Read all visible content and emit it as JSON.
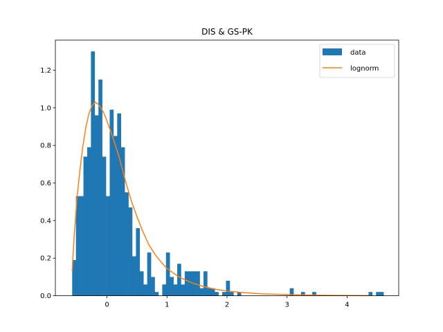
{
  "chart_data": {
    "type": "bar",
    "title": "DIS & GS-PK",
    "xlabel": "",
    "ylabel": "",
    "xlim": [
      -0.86,
      4.86
    ],
    "ylim": [
      0,
      1.36
    ],
    "xticks": [
      0,
      1,
      2,
      3,
      4
    ],
    "yticks": [
      0.0,
      0.2,
      0.4,
      0.6,
      0.8,
      1.0,
      1.2
    ],
    "grid": false,
    "legend_position": "top-right",
    "bin_width": 0.0625,
    "series": [
      {
        "name": "data",
        "kind": "histogram",
        "color": "#1f77b4",
        "bins": [
          {
            "x0": -0.58,
            "height": 0.19
          },
          {
            "x0": -0.5175,
            "height": 0.53
          },
          {
            "x0": -0.455,
            "height": 0.53
          },
          {
            "x0": -0.3925,
            "height": 0.74
          },
          {
            "x0": -0.33,
            "height": 0.79
          },
          {
            "x0": -0.2675,
            "height": 1.3
          },
          {
            "x0": -0.205,
            "height": 0.96
          },
          {
            "x0": -0.1425,
            "height": 1.15
          },
          {
            "x0": -0.08,
            "height": 0.74
          },
          {
            "x0": -0.0175,
            "height": 0.53
          },
          {
            "x0": 0.045,
            "height": 0.99
          },
          {
            "x0": 0.1075,
            "height": 0.85
          },
          {
            "x0": 0.17,
            "height": 0.97
          },
          {
            "x0": 0.2325,
            "height": 0.79
          },
          {
            "x0": 0.295,
            "height": 0.55
          },
          {
            "x0": 0.3575,
            "height": 0.47
          },
          {
            "x0": 0.42,
            "height": 0.21
          },
          {
            "x0": 0.4825,
            "height": 0.36
          },
          {
            "x0": 0.545,
            "height": 0.13
          },
          {
            "x0": 0.6075,
            "height": 0.06
          },
          {
            "x0": 0.67,
            "height": 0.23
          },
          {
            "x0": 0.7325,
            "height": 0.1
          },
          {
            "x0": 0.795,
            "height": 0.02
          },
          {
            "x0": 0.92,
            "height": 0.06
          },
          {
            "x0": 0.9825,
            "height": 0.23
          },
          {
            "x0": 1.045,
            "height": 0.1
          },
          {
            "x0": 1.1075,
            "height": 0.06
          },
          {
            "x0": 1.17,
            "height": 0.17
          },
          {
            "x0": 1.2325,
            "height": 0.06
          },
          {
            "x0": 1.295,
            "height": 0.13
          },
          {
            "x0": 1.3575,
            "height": 0.13
          },
          {
            "x0": 1.42,
            "height": 0.13
          },
          {
            "x0": 1.4825,
            "height": 0.13
          },
          {
            "x0": 1.545,
            "height": 0.04
          },
          {
            "x0": 1.6075,
            "height": 0.13
          },
          {
            "x0": 1.67,
            "height": 0.04
          },
          {
            "x0": 1.7325,
            "height": 0.04
          },
          {
            "x0": 1.795,
            "height": 0.02
          },
          {
            "x0": 1.92,
            "height": 0.02
          },
          {
            "x0": 1.9825,
            "height": 0.08
          },
          {
            "x0": 2.045,
            "height": 0.02
          },
          {
            "x0": 2.17,
            "height": 0.02
          },
          {
            "x0": 3.045,
            "height": 0.04
          },
          {
            "x0": 3.2325,
            "height": 0.02
          },
          {
            "x0": 3.42,
            "height": 0.02
          },
          {
            "x0": 4.3575,
            "height": 0.02
          },
          {
            "x0": 4.4825,
            "height": 0.02
          },
          {
            "x0": 4.545,
            "height": 0.02
          }
        ]
      },
      {
        "name": "lognorm",
        "kind": "line",
        "color": "#ff7f0e",
        "points": [
          {
            "x": -0.58,
            "y": 0.13
          },
          {
            "x": -0.55,
            "y": 0.3
          },
          {
            "x": -0.5,
            "y": 0.52
          },
          {
            "x": -0.45,
            "y": 0.67
          },
          {
            "x": -0.4,
            "y": 0.8
          },
          {
            "x": -0.35,
            "y": 0.9
          },
          {
            "x": -0.3,
            "y": 0.97
          },
          {
            "x": -0.25,
            "y": 1.01
          },
          {
            "x": -0.2,
            "y": 1.03
          },
          {
            "x": -0.15,
            "y": 1.02
          },
          {
            "x": -0.1,
            "y": 1.0
          },
          {
            "x": -0.05,
            "y": 0.97
          },
          {
            "x": 0.0,
            "y": 0.93
          },
          {
            "x": 0.1,
            "y": 0.84
          },
          {
            "x": 0.2,
            "y": 0.74
          },
          {
            "x": 0.3,
            "y": 0.62
          },
          {
            "x": 0.4,
            "y": 0.51
          },
          {
            "x": 0.5,
            "y": 0.42
          },
          {
            "x": 0.6,
            "y": 0.34
          },
          {
            "x": 0.7,
            "y": 0.27
          },
          {
            "x": 0.8,
            "y": 0.22
          },
          {
            "x": 0.9,
            "y": 0.18
          },
          {
            "x": 1.0,
            "y": 0.145
          },
          {
            "x": 1.2,
            "y": 0.1
          },
          {
            "x": 1.4,
            "y": 0.07
          },
          {
            "x": 1.6,
            "y": 0.05
          },
          {
            "x": 1.8,
            "y": 0.035
          },
          {
            "x": 2.0,
            "y": 0.025
          },
          {
            "x": 2.3,
            "y": 0.016
          },
          {
            "x": 2.6,
            "y": 0.01
          },
          {
            "x": 3.0,
            "y": 0.006
          },
          {
            "x": 3.5,
            "y": 0.003
          },
          {
            "x": 4.0,
            "y": 0.0015
          },
          {
            "x": 4.4,
            "y": 0.001
          }
        ]
      }
    ]
  }
}
